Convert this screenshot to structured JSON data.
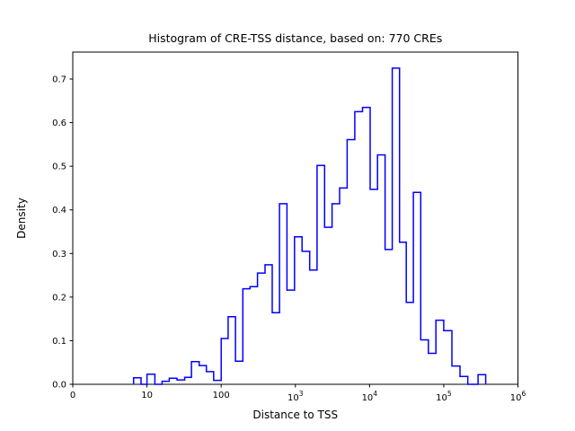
{
  "figure": {
    "title": "Histogram of CRE-TSS distance, based on: 770 CREs",
    "xlabel": "Distance to TSS",
    "ylabel": "Density",
    "line_color": "#0000ff",
    "frame_color": "#000000",
    "background_color": "#ffffff",
    "x_ticks": [
      {
        "label": "0",
        "sup": "",
        "value": 0
      },
      {
        "label": "10",
        "sup": "",
        "value": 10
      },
      {
        "label": "100",
        "sup": "",
        "value": 100
      },
      {
        "label": "10",
        "sup": "3",
        "value": 1000
      },
      {
        "label": "10",
        "sup": "4",
        "value": 10000
      },
      {
        "label": "10",
        "sup": "5",
        "value": 100000
      },
      {
        "label": "10",
        "sup": "6",
        "value": 1000000
      }
    ],
    "y_ticks": [
      {
        "label": "0.0",
        "value": 0.0
      },
      {
        "label": "0.1",
        "value": 0.1
      },
      {
        "label": "0.2",
        "value": 0.2
      },
      {
        "label": "0.3",
        "value": 0.3
      },
      {
        "label": "0.4",
        "value": 0.4
      },
      {
        "label": "0.5",
        "value": 0.5
      },
      {
        "label": "0.6",
        "value": 0.6
      },
      {
        "label": "0.7",
        "value": 0.7
      }
    ]
  },
  "chart_data": {
    "type": "bar",
    "subtype": "step-histogram",
    "title": "Histogram of CRE-TSS distance, based on: 770 CREs",
    "xlabel": "Distance to TSS",
    "ylabel": "Density",
    "x_scale": "symlog",
    "linthresh": 10,
    "xlim": [
      0,
      1000000
    ],
    "ylim": [
      0,
      0.76
    ],
    "grid": false,
    "legend": "none",
    "sample_count": 770,
    "bins": [
      [
        8.2,
        9.2,
        0.015
      ],
      [
        9.2,
        10,
        0
      ],
      [
        10,
        12.8,
        0.023
      ],
      [
        12.8,
        16,
        0
      ],
      [
        16,
        20,
        0.007
      ],
      [
        20,
        25.4,
        0.014
      ],
      [
        25.4,
        32.3,
        0.01
      ],
      [
        32.3,
        39.8,
        0.016
      ],
      [
        39.8,
        50.5,
        0.052
      ],
      [
        50.5,
        63.1,
        0.043
      ],
      [
        63.1,
        79.1,
        0.029
      ],
      [
        79.1,
        100,
        0.009
      ],
      [
        100,
        124,
        0.105
      ],
      [
        124,
        156,
        0.155
      ],
      [
        156,
        196,
        0.053
      ],
      [
        196,
        245,
        0.219
      ],
      [
        245,
        309,
        0.224
      ],
      [
        309,
        390,
        0.255
      ],
      [
        390,
        488,
        0.274
      ],
      [
        488,
        611,
        0.164
      ],
      [
        611,
        771,
        0.414
      ],
      [
        771,
        975,
        0.216
      ],
      [
        975,
        1230,
        0.338
      ],
      [
        1230,
        1560,
        0.305
      ],
      [
        1560,
        1963,
        0.262
      ],
      [
        1963,
        2478,
        0.502
      ],
      [
        2478,
        3126,
        0.36
      ],
      [
        3126,
        3953,
        0.414
      ],
      [
        3953,
        4989,
        0.45
      ],
      [
        4989,
        6324,
        0.561
      ],
      [
        6324,
        8030,
        0.625
      ],
      [
        8030,
        10190,
        0.635
      ],
      [
        10190,
        12820,
        0.447
      ],
      [
        12820,
        16180,
        0.526
      ],
      [
        16180,
        20240,
        0.309
      ],
      [
        20240,
        25350,
        0.725
      ],
      [
        25350,
        31270,
        0.326
      ],
      [
        31270,
        38900,
        0.188
      ],
      [
        38900,
        48970,
        0.44
      ],
      [
        48970,
        62100,
        0.102
      ],
      [
        62100,
        78340,
        0.071
      ],
      [
        78340,
        100000,
        0.147
      ],
      [
        100000,
        128800,
        0.123
      ],
      [
        128800,
        165600,
        0.042
      ],
      [
        165600,
        211300,
        0.018
      ],
      [
        211300,
        289700,
        0
      ],
      [
        289700,
        367400,
        0.022
      ]
    ]
  }
}
